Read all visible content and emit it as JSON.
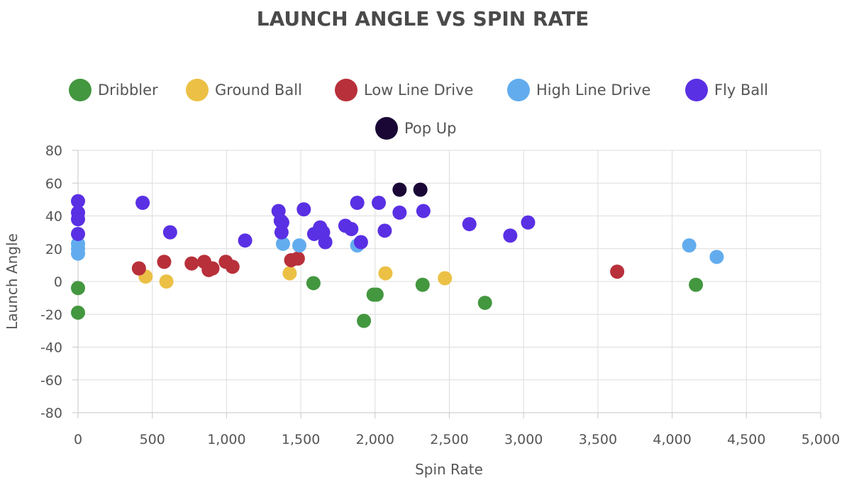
{
  "chart_data": {
    "type": "scatter",
    "title": "LAUNCH ANGLE VS SPIN RATE",
    "xlabel": "Spin Rate",
    "ylabel": "Launch Angle",
    "xlim": [
      0,
      5000
    ],
    "ylim": [
      -80,
      80
    ],
    "x_ticks": [
      0,
      500,
      1000,
      1500,
      2000,
      2500,
      3000,
      3500,
      4000,
      4500,
      5000
    ],
    "x_tick_labels": [
      "0",
      "500",
      "1,000",
      "1,500",
      "2,000",
      "2,500",
      "3,000",
      "3,500",
      "4,000",
      "4,500",
      "5,000"
    ],
    "y_ticks": [
      80,
      60,
      40,
      20,
      0,
      -20,
      -40,
      -60,
      -80
    ],
    "y_tick_labels": [
      "80",
      "60",
      "40",
      "20",
      "0",
      "-20",
      "-40",
      "-60",
      "-80"
    ],
    "grid": true,
    "legend_position": "top",
    "series": [
      {
        "name": "Dribbler",
        "color": "#43973f",
        "points": [
          [
            0,
            -4
          ],
          [
            0,
            -19
          ],
          [
            1585,
            -1
          ],
          [
            1925,
            -24
          ],
          [
            1990,
            -8
          ],
          [
            2010,
            -8
          ],
          [
            2320,
            -2
          ],
          [
            2740,
            -13
          ],
          [
            4160,
            -2
          ]
        ]
      },
      {
        "name": "Ground Ball",
        "color": "#ebc045",
        "points": [
          [
            455,
            3
          ],
          [
            595,
            0
          ],
          [
            1425,
            5
          ],
          [
            2070,
            5
          ],
          [
            2470,
            2
          ]
        ]
      },
      {
        "name": "Low Line Drive",
        "color": "#b8303a",
        "points": [
          [
            410,
            8
          ],
          [
            580,
            12
          ],
          [
            765,
            11
          ],
          [
            850,
            12
          ],
          [
            880,
            7
          ],
          [
            905,
            8
          ],
          [
            995,
            12
          ],
          [
            1040,
            9
          ],
          [
            1435,
            13
          ],
          [
            1480,
            14
          ],
          [
            3630,
            6
          ]
        ]
      },
      {
        "name": "High Line Drive",
        "color": "#62acee",
        "points": [
          [
            0,
            23
          ],
          [
            0,
            20
          ],
          [
            0,
            17
          ],
          [
            1380,
            23
          ],
          [
            1490,
            22
          ],
          [
            1880,
            22
          ],
          [
            4115,
            22
          ],
          [
            4300,
            15
          ]
        ]
      },
      {
        "name": "Fly Ball",
        "color": "#5a30e4",
        "points": [
          [
            0,
            49
          ],
          [
            0,
            42
          ],
          [
            0,
            38
          ],
          [
            0,
            29
          ],
          [
            435,
            48
          ],
          [
            620,
            30
          ],
          [
            1125,
            25
          ],
          [
            1350,
            43
          ],
          [
            1365,
            37
          ],
          [
            1375,
            36
          ],
          [
            1370,
            30
          ],
          [
            1520,
            44
          ],
          [
            1590,
            29
          ],
          [
            1630,
            33
          ],
          [
            1650,
            30
          ],
          [
            1665,
            24
          ],
          [
            1800,
            34
          ],
          [
            1840,
            32
          ],
          [
            1880,
            48
          ],
          [
            1905,
            24
          ],
          [
            2025,
            48
          ],
          [
            2065,
            31
          ],
          [
            2165,
            42
          ],
          [
            2325,
            43
          ],
          [
            2635,
            35
          ],
          [
            2910,
            28
          ],
          [
            3030,
            36
          ]
        ]
      },
      {
        "name": "Pop Up",
        "color": "#1a0735",
        "points": [
          [
            2165,
            56
          ],
          [
            2305,
            56
          ]
        ]
      }
    ]
  }
}
